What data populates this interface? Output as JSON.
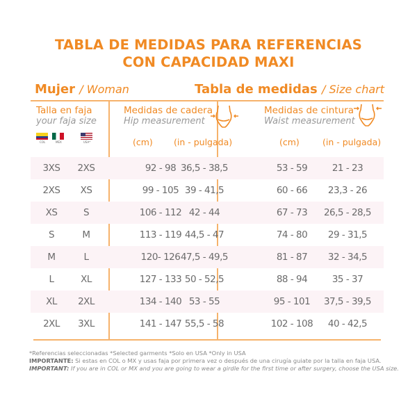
{
  "title": {
    "line1": "TABLA DE MEDIDAS PARA REFERENCIAS",
    "line2": "CON CAPACIDAD MAXI"
  },
  "left_header": {
    "label": "Mujer",
    "label_en": "/ Woman"
  },
  "right_header": {
    "label": "Tabla de medidas",
    "label_en": "/ Size chart"
  },
  "size_col": {
    "label": "Talla en faja",
    "label_en": "your faja size",
    "flags": [
      "COL",
      "MEX",
      "USA*"
    ]
  },
  "hip": {
    "label": "Medidas de cadera",
    "label_en": "Hip measurement",
    "icon": "hip-measure-icon",
    "units": [
      "(cm)",
      "(in - pulgada)"
    ]
  },
  "waist": {
    "label": "Medidas de cintura",
    "label_en": "Waist measurement",
    "icon": "waist-measure-icon",
    "units": [
      "(cm)",
      "(in - pulgada)"
    ]
  },
  "rows": [
    [
      "3XS",
      "2XS",
      "92 - 98",
      "36,5 - 38,5",
      "53 - 59",
      "21 - 23"
    ],
    [
      "2XS",
      "XS",
      "99 - 105",
      "39 - 41,5",
      "60 - 66",
      "23,3 - 26"
    ],
    [
      "XS",
      "S",
      "106 - 112",
      "42 - 44",
      "67 - 73",
      "26,5 - 28,5"
    ],
    [
      "S",
      "M",
      "113 - 119",
      "44,5 - 47",
      "74 - 80",
      "29 - 31,5"
    ],
    [
      "M",
      "L",
      "120- 126",
      "47,5 - 49,5",
      "81 - 87",
      "32 - 34,5"
    ],
    [
      "L",
      "XL",
      "127 - 133",
      "50 - 52,5",
      "88 - 94",
      "35 - 37"
    ],
    [
      "XL",
      "2XL",
      "134 - 140",
      "53 - 55",
      "95 - 101",
      "37,5 - 39,5"
    ],
    [
      "2XL",
      "3XL",
      "141 - 147",
      "55,5 - 58",
      "102 - 108",
      "40 - 42,5"
    ]
  ],
  "notes": {
    "refs": "*Referencias seleccionadas *Selected garments *Solo en USA *Only in USA",
    "es_bold": "IMPORTANTE:",
    "es": " Si estas en COL o MX y usas faja por primera vez o después de una cirugía guiate por la talla en faja USA.",
    "en_bold": "IMPORTANT:",
    "en": " If you are in COL or MX and you are going to wear a girdle for the first time or after surgery, choose the USA size."
  },
  "colors": {
    "accent": "#f08a24",
    "line": "#f6b26b",
    "shade": "#fcf3f6"
  }
}
